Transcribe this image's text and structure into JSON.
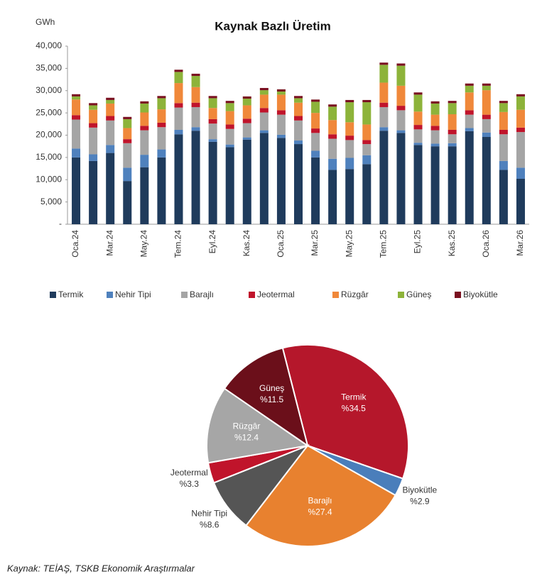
{
  "chart_data": [
    {
      "type": "bar",
      "stacked": true,
      "title": "Kaynak Bazlı Üretim",
      "y_label": "GWh",
      "categories": [
        "Oca.24",
        null,
        "Mar.24",
        null,
        "May.24",
        null,
        "Tem.24",
        null,
        "Eyl.24",
        null,
        "Kas.24",
        null,
        "Oca.25",
        null,
        "Mar.25",
        null,
        "May.25",
        null,
        "Tem.25",
        null,
        "Eyl.25",
        null,
        "Kas.25",
        null,
        "Oca.26",
        null,
        "Mar.26"
      ],
      "ylim": [
        0,
        40000
      ],
      "yticks": [
        {
          "value": 0,
          "label": "-"
        },
        {
          "value": 5000,
          "label": "5,000"
        },
        {
          "value": 10000,
          "label": "10,000"
        },
        {
          "value": 15000,
          "label": "15,000"
        },
        {
          "value": 20000,
          "label": "20,000"
        },
        {
          "value": 25000,
          "label": "25,000"
        },
        {
          "value": 30000,
          "label": "30,000"
        },
        {
          "value": 35000,
          "label": "35,000"
        },
        {
          "value": 40000,
          "label": "40,000"
        }
      ],
      "series": [
        {
          "name": "Termik",
          "color": "#1f3b5c",
          "values": [
            15000,
            14200,
            16000,
            9700,
            12800,
            15000,
            20200,
            21000,
            18500,
            17300,
            19000,
            20500,
            19400,
            18000,
            15000,
            12200,
            12400,
            13500,
            21000,
            20500,
            17800,
            17500,
            17500,
            20900,
            19600,
            12200,
            10200
          ]
        },
        {
          "name": "Nehir Tipi",
          "color": "#4f81bd",
          "values": [
            2000,
            1500,
            1800,
            3000,
            2800,
            1800,
            1000,
            800,
            600,
            600,
            500,
            600,
            700,
            800,
            1500,
            2500,
            2500,
            2000,
            800,
            600,
            500,
            600,
            700,
            700,
            1000,
            2000,
            2500
          ]
        },
        {
          "name": "Barajlı",
          "color": "#a5a5a5",
          "values": [
            6500,
            6000,
            5500,
            5500,
            5500,
            5000,
            5000,
            4500,
            3500,
            3500,
            3200,
            4000,
            4500,
            4500,
            4000,
            4500,
            4000,
            2500,
            4500,
            4500,
            3000,
            3000,
            2000,
            3000,
            3000,
            6000,
            8000
          ]
        },
        {
          "name": "Jeotermal",
          "color": "#c0142b",
          "values": [
            1000,
            1000,
            1000,
            900,
            1000,
            1000,
            1000,
            1000,
            1000,
            1000,
            1000,
            1000,
            1000,
            1000,
            1000,
            1000,
            1000,
            900,
            1000,
            1000,
            1000,
            1000,
            1000,
            1000,
            1000,
            1000,
            1000
          ]
        },
        {
          "name": "Rüzgâr",
          "color": "#f0883a",
          "values": [
            3500,
            3000,
            2800,
            2500,
            3000,
            3000,
            4500,
            3500,
            2500,
            3000,
            3000,
            3000,
            3500,
            3000,
            3500,
            3200,
            3000,
            3500,
            4500,
            4500,
            3000,
            2500,
            3500,
            4000,
            5500,
            4000,
            4000
          ]
        },
        {
          "name": "Güneş",
          "color": "#8db33a",
          "values": [
            700,
            1000,
            800,
            2000,
            2000,
            2500,
            2500,
            2500,
            2200,
            1800,
            1500,
            1000,
            700,
            1000,
            2500,
            3000,
            4500,
            5000,
            4000,
            4500,
            3800,
            2500,
            2500,
            1500,
            1000,
            2000,
            3000
          ]
        },
        {
          "name": "Biyokütle",
          "color": "#7a1020",
          "values": [
            500,
            500,
            500,
            500,
            500,
            500,
            500,
            500,
            500,
            500,
            500,
            500,
            500,
            500,
            500,
            500,
            500,
            500,
            500,
            500,
            500,
            500,
            500,
            500,
            500,
            500,
            500
          ]
        }
      ]
    },
    {
      "type": "pie",
      "categories": [
        "Termik",
        "Biyokütle",
        "Barajlı",
        "Nehir Tipi",
        "Jeotermal",
        "Rüzgâr",
        "Güneş"
      ],
      "values": [
        34.5,
        2.9,
        27.4,
        8.6,
        3.3,
        12.4,
        11.5
      ],
      "value_labels": [
        "%34.5",
        "%2.9",
        "%27.4",
        "%8.6",
        "%3.3",
        "%12.4",
        "%11.5"
      ],
      "colors": [
        "#b5172b",
        "#4a7ebb",
        "#e8812f",
        "#555555",
        "#c0142b",
        "#a6a6a6",
        "#6b0f1a"
      ]
    }
  ],
  "source": "Kaynak: TEİAŞ, TSKB Ekonomik Araştırmalar"
}
